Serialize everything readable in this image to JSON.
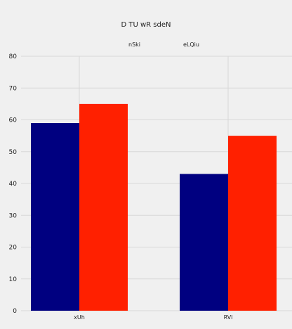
{
  "chart_data": {
    "type": "bar",
    "title": "D  TU wR sdeN",
    "categories": [
      "xUh",
      "RVl"
    ],
    "series": [
      {
        "name": "nSki",
        "values": [
          59,
          43
        ],
        "color": "#000080"
      },
      {
        "name": "eLQiu",
        "values": [
          65,
          55
        ],
        "color": "#ff2000"
      }
    ],
    "y_ticks": [
      0,
      10,
      20,
      30,
      40,
      50,
      60,
      70,
      80
    ],
    "ylim": [
      0,
      80
    ],
    "grid": true,
    "legend_placement": "top-center",
    "background_color": "#f0f0f0",
    "grid_color": "#d8d8d8"
  }
}
